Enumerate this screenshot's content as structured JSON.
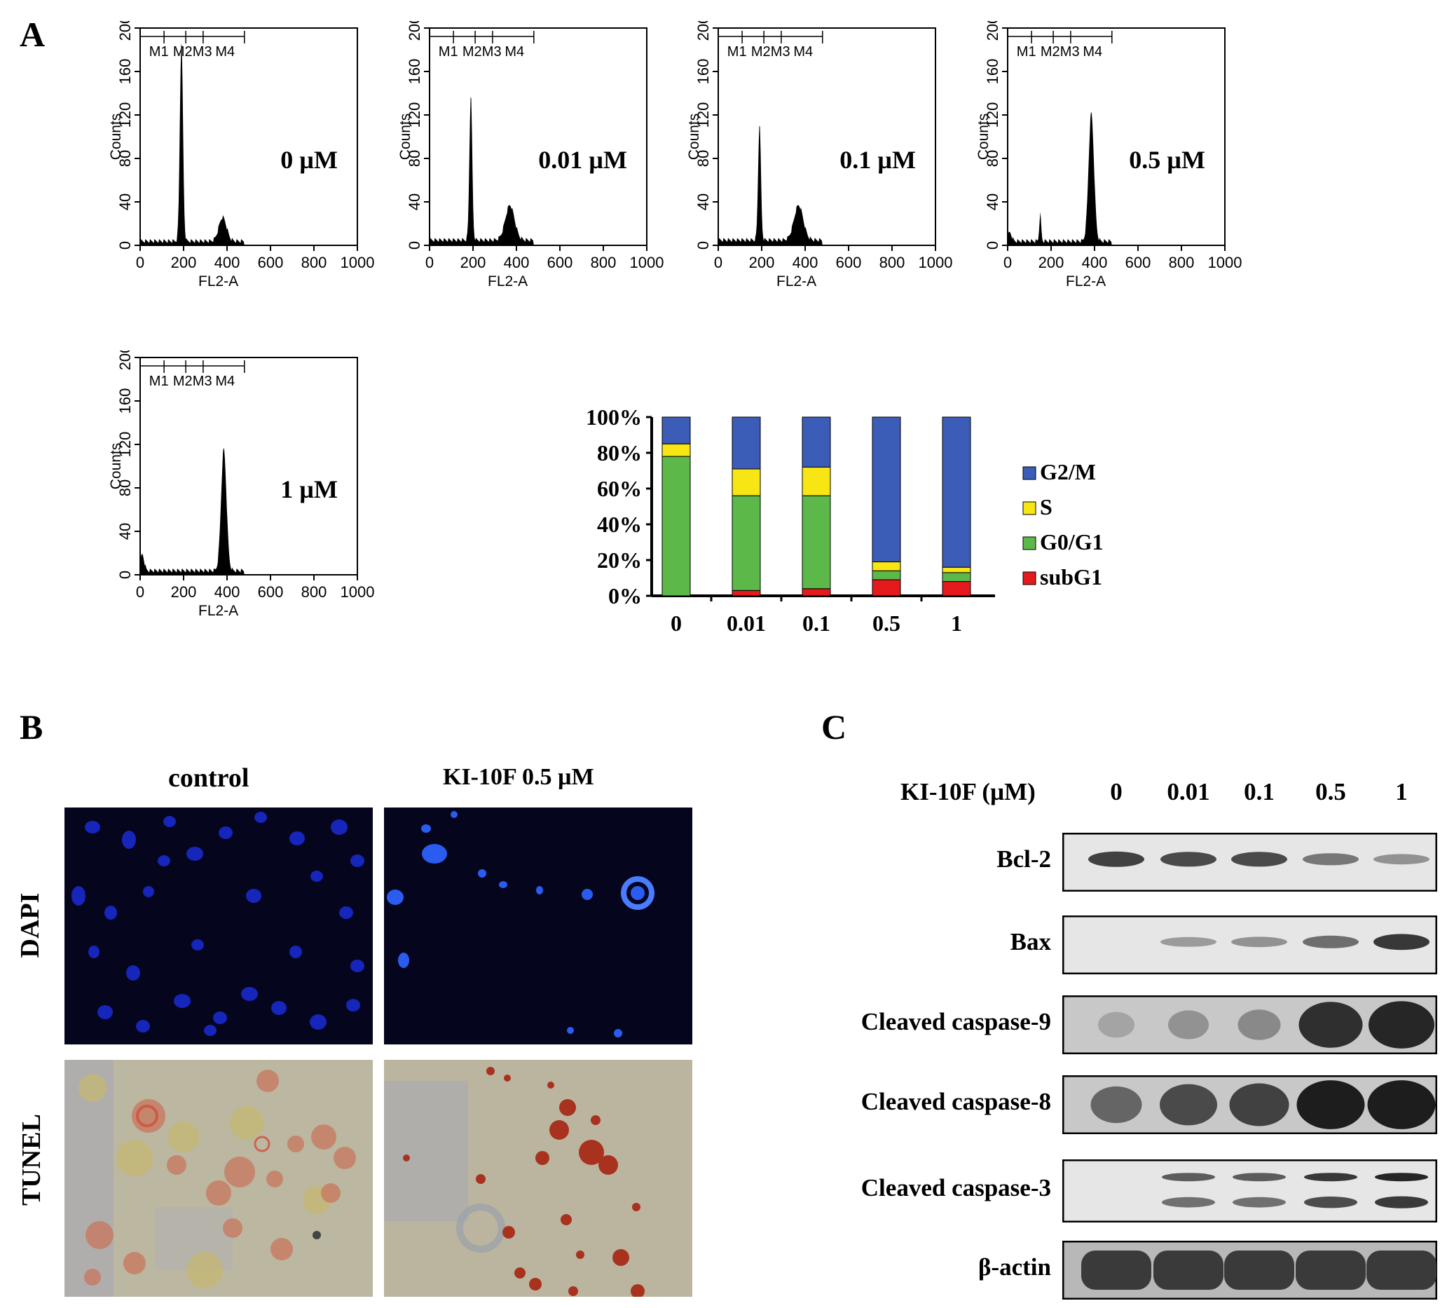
{
  "panels": {
    "a": "A",
    "b": "B",
    "c": "C"
  },
  "histogram": {
    "y_label": "Counts",
    "x_label": "FL2-A",
    "x_ticks": [
      "0",
      "200",
      "400",
      "600",
      "800",
      "1000"
    ],
    "y_ticks": [
      "0",
      "40",
      "80",
      "120",
      "160",
      "200"
    ],
    "gates": [
      "M1",
      "M2",
      "M3",
      "M4"
    ],
    "plots": [
      {
        "dose": "0 µM",
        "peaks": [
          {
            "x": 190,
            "h": 185,
            "w": 20
          },
          {
            "x": 380,
            "h": 22,
            "w": 50
          }
        ],
        "subg1": 0,
        "base": 4
      },
      {
        "dose": "0.01 µM",
        "peaks": [
          {
            "x": 190,
            "h": 135,
            "w": 18
          },
          {
            "x": 370,
            "h": 32,
            "w": 60
          }
        ],
        "subg1": 0,
        "base": 5
      },
      {
        "dose": "0.1 µM",
        "peaks": [
          {
            "x": 190,
            "h": 108,
            "w": 18
          },
          {
            "x": 370,
            "h": 32,
            "w": 60
          }
        ],
        "subg1": 0,
        "base": 5
      },
      {
        "dose": "0.5 µM",
        "peaks": [
          {
            "x": 150,
            "h": 25,
            "w": 12
          },
          {
            "x": 385,
            "h": 118,
            "w": 35
          }
        ],
        "subg1": 8,
        "base": 4
      },
      {
        "dose": "1 µM",
        "peaks": [
          {
            "x": 385,
            "h": 112,
            "w": 35
          }
        ],
        "subg1": 15,
        "base": 4
      }
    ]
  },
  "chart_data": {
    "type": "bar",
    "stacked": true,
    "categories": [
      "0",
      "0.01",
      "0.1",
      "0.5",
      "1"
    ],
    "y_ticks": [
      "0%",
      "20%",
      "40%",
      "60%",
      "80%",
      "100%"
    ],
    "ylim": [
      0,
      100
    ],
    "series": [
      {
        "name": "subG1",
        "color": "#e41a1c",
        "values": [
          0,
          3,
          4,
          9,
          8
        ]
      },
      {
        "name": "G0/G1",
        "color": "#5cb849",
        "values": [
          78,
          53,
          52,
          5,
          5
        ]
      },
      {
        "name": "S",
        "color": "#f7e514",
        "values": [
          7,
          15,
          16,
          5,
          3
        ]
      },
      {
        "name": "G2/M",
        "color": "#3b5cb7",
        "values": [
          15,
          29,
          28,
          81,
          84
        ]
      }
    ],
    "legend_position": "right"
  },
  "panel_b": {
    "cols": [
      "control",
      "KI-10F 0.5 µM"
    ],
    "rows": [
      "DAPI",
      "TUNEL"
    ]
  },
  "panel_c": {
    "header_label": "KI-10F (µM)",
    "doses": [
      "0",
      "0.01",
      "0.1",
      "0.5",
      "1"
    ],
    "blots": [
      {
        "label": "Bcl-2",
        "intensity": [
          0.75,
          0.7,
          0.7,
          0.45,
          0.3
        ]
      },
      {
        "label": "Bax",
        "intensity": [
          0,
          0.25,
          0.3,
          0.5,
          0.8
        ]
      },
      {
        "label": "Cleaved caspase-9",
        "intensity": [
          0.2,
          0.3,
          0.35,
          0.85,
          0.9
        ]
      },
      {
        "label": "Cleaved caspase-8",
        "intensity": [
          0.55,
          0.7,
          0.75,
          0.95,
          0.95
        ]
      },
      {
        "label": "Cleaved caspase-3",
        "intensity": [
          0,
          0.6,
          0.6,
          0.8,
          0.9
        ]
      },
      {
        "label": "β-actin",
        "intensity": [
          0.9,
          0.9,
          0.9,
          0.9,
          0.9
        ]
      }
    ]
  }
}
